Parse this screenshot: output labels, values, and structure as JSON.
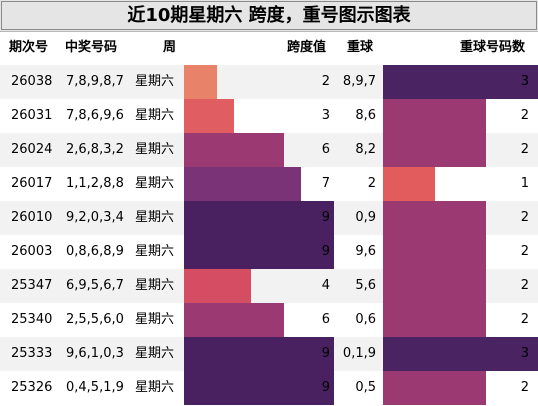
{
  "title": "近10期星期六 跨度，重号图示图表",
  "headers": {
    "issue": "期次号",
    "numbers": "中奖号码",
    "weekday": "周",
    "span": "跨度值",
    "repeat": "重球",
    "repeat_count": "重球号码数"
  },
  "colors": {
    "title_bg": "#e5e5e5",
    "row_odd": "#f2f2f2",
    "row_even": "#ffffff",
    "span_1": "#5c2a6e",
    "span_2": "#e8836a",
    "span_3": "#e05e61",
    "span_4": "#d44d62",
    "span_6": "#9b3a72",
    "span_7": "#7b3378",
    "span_9": "#492161",
    "repeat_1": "#e35c5d",
    "repeat_2": "#9b3a72",
    "repeat_3": "#4a2363"
  },
  "chart_data": {
    "type": "table",
    "columns": [
      "期次号",
      "中奖号码",
      "周",
      "跨度值",
      "重球",
      "重球号码数"
    ],
    "span_max": 9,
    "repeat_count_max": 3,
    "rows": [
      {
        "issue": "26038",
        "numbers": "7,8,9,8,7",
        "weekday": "星期六",
        "span": 2,
        "repeat": "8,9,7",
        "repeat_count": 3
      },
      {
        "issue": "26031",
        "numbers": "7,8,6,9,6",
        "weekday": "星期六",
        "span": 3,
        "repeat": "8,6",
        "repeat_count": 2
      },
      {
        "issue": "26024",
        "numbers": "2,6,8,3,2",
        "weekday": "星期六",
        "span": 6,
        "repeat": "8,2",
        "repeat_count": 2
      },
      {
        "issue": "26017",
        "numbers": "1,1,2,8,8",
        "weekday": "星期六",
        "span": 7,
        "repeat": "2",
        "repeat_count": 1
      },
      {
        "issue": "26010",
        "numbers": "9,2,0,3,4",
        "weekday": "星期六",
        "span": 9,
        "repeat": "0,9",
        "repeat_count": 2
      },
      {
        "issue": "26003",
        "numbers": "0,8,6,8,9",
        "weekday": "星期六",
        "span": 9,
        "repeat": "9,6",
        "repeat_count": 2
      },
      {
        "issue": "25347",
        "numbers": "6,9,5,6,7",
        "weekday": "星期六",
        "span": 4,
        "repeat": "5,6",
        "repeat_count": 2
      },
      {
        "issue": "25340",
        "numbers": "2,5,5,6,0",
        "weekday": "星期六",
        "span": 6,
        "repeat": "0,6",
        "repeat_count": 2
      },
      {
        "issue": "25333",
        "numbers": "9,6,1,0,3",
        "weekday": "星期六",
        "span": 9,
        "repeat": "0,1,9",
        "repeat_count": 3
      },
      {
        "issue": "25326",
        "numbers": "0,4,5,1,9",
        "weekday": "星期六",
        "span": 9,
        "repeat": "0,5",
        "repeat_count": 2
      }
    ]
  }
}
